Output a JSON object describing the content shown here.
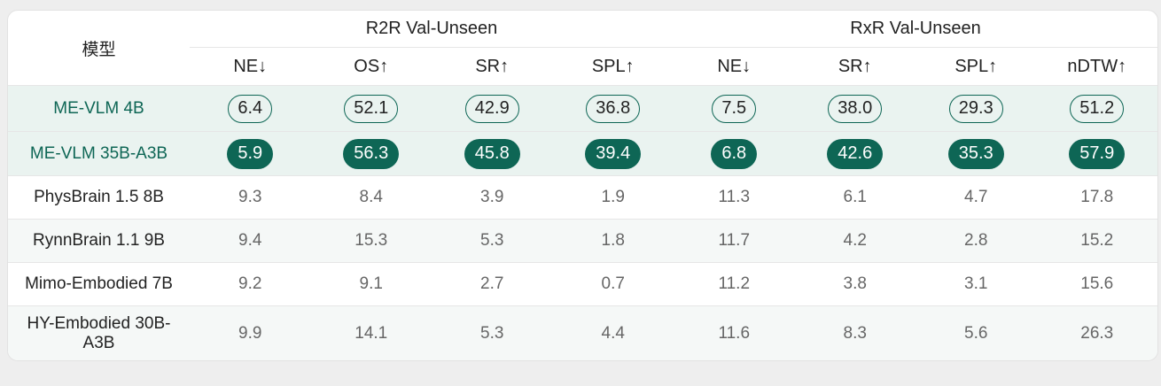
{
  "header": {
    "model": "模型",
    "group1": "R2R Val-Unseen",
    "group2": "RxR Val-Unseen",
    "metrics": [
      "NE↓",
      "OS↑",
      "SR↑",
      "SPL↑",
      "NE↓",
      "SR↑",
      "SPL↑",
      "nDTW↑"
    ]
  },
  "rows": [
    {
      "name": "ME-VLM 4B",
      "values": [
        "6.4",
        "52.1",
        "42.9",
        "36.8",
        "7.5",
        "38.0",
        "29.3",
        "51.2"
      ]
    },
    {
      "name": "ME-VLM 35B-A3B",
      "values": [
        "5.9",
        "56.3",
        "45.8",
        "39.4",
        "6.8",
        "42.6",
        "35.3",
        "57.9"
      ]
    },
    {
      "name": "PhysBrain 1.5 8B",
      "values": [
        "9.3",
        "8.4",
        "3.9",
        "1.9",
        "11.3",
        "6.1",
        "4.7",
        "17.8"
      ]
    },
    {
      "name": "RynnBrain 1.1 9B",
      "values": [
        "9.4",
        "15.3",
        "5.3",
        "1.8",
        "11.7",
        "4.2",
        "2.8",
        "15.2"
      ]
    },
    {
      "name": "Mimo-Embodied 7B",
      "values": [
        "9.2",
        "9.1",
        "2.7",
        "0.7",
        "11.2",
        "3.8",
        "3.1",
        "15.6"
      ]
    },
    {
      "name": "HY-Embodied 30B-A3B",
      "values": [
        "9.9",
        "14.1",
        "5.3",
        "4.4",
        "11.6",
        "8.3",
        "5.6",
        "26.3"
      ]
    }
  ],
  "colors": {
    "accent": "#0e6655",
    "highlight_bg": "#eaf3f0"
  }
}
